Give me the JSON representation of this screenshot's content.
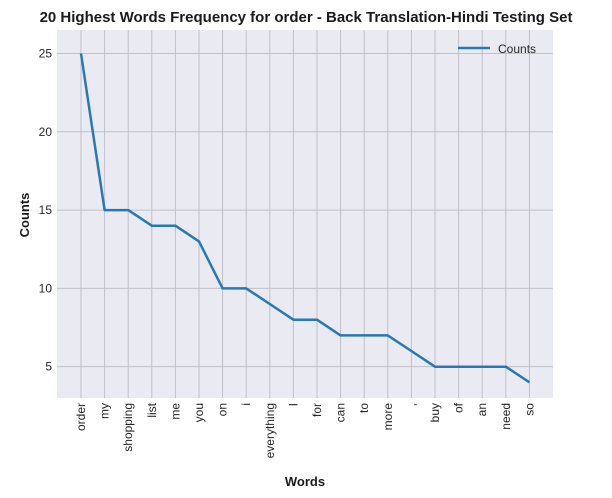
{
  "chart_data": {
    "type": "line",
    "title": "20 Highest Words Frequency for order - Back Translation-Hindi Testing Set",
    "xlabel": "Words",
    "ylabel": "Counts",
    "categories": [
      "order",
      "my",
      "shopping",
      "list",
      "me",
      "you",
      "on",
      "i",
      "everything",
      "I",
      "for",
      "can",
      "to",
      "more",
      ",",
      "buy",
      "of",
      "an",
      "need",
      "so"
    ],
    "series": [
      {
        "name": "Counts",
        "values": [
          25,
          15,
          15,
          14,
          14,
          13,
          10,
          10,
          9,
          8,
          8,
          7,
          7,
          7,
          6,
          5,
          5,
          5,
          5,
          4
        ]
      }
    ],
    "ylim": [
      3,
      26.5
    ],
    "yticks": [
      5,
      10,
      15,
      20,
      25
    ],
    "grid": true,
    "legend_position": "top-right",
    "colors": {
      "line": "#2878b5",
      "plot_bg": "#eaeaf2",
      "grid": "#c0c0c8"
    }
  }
}
